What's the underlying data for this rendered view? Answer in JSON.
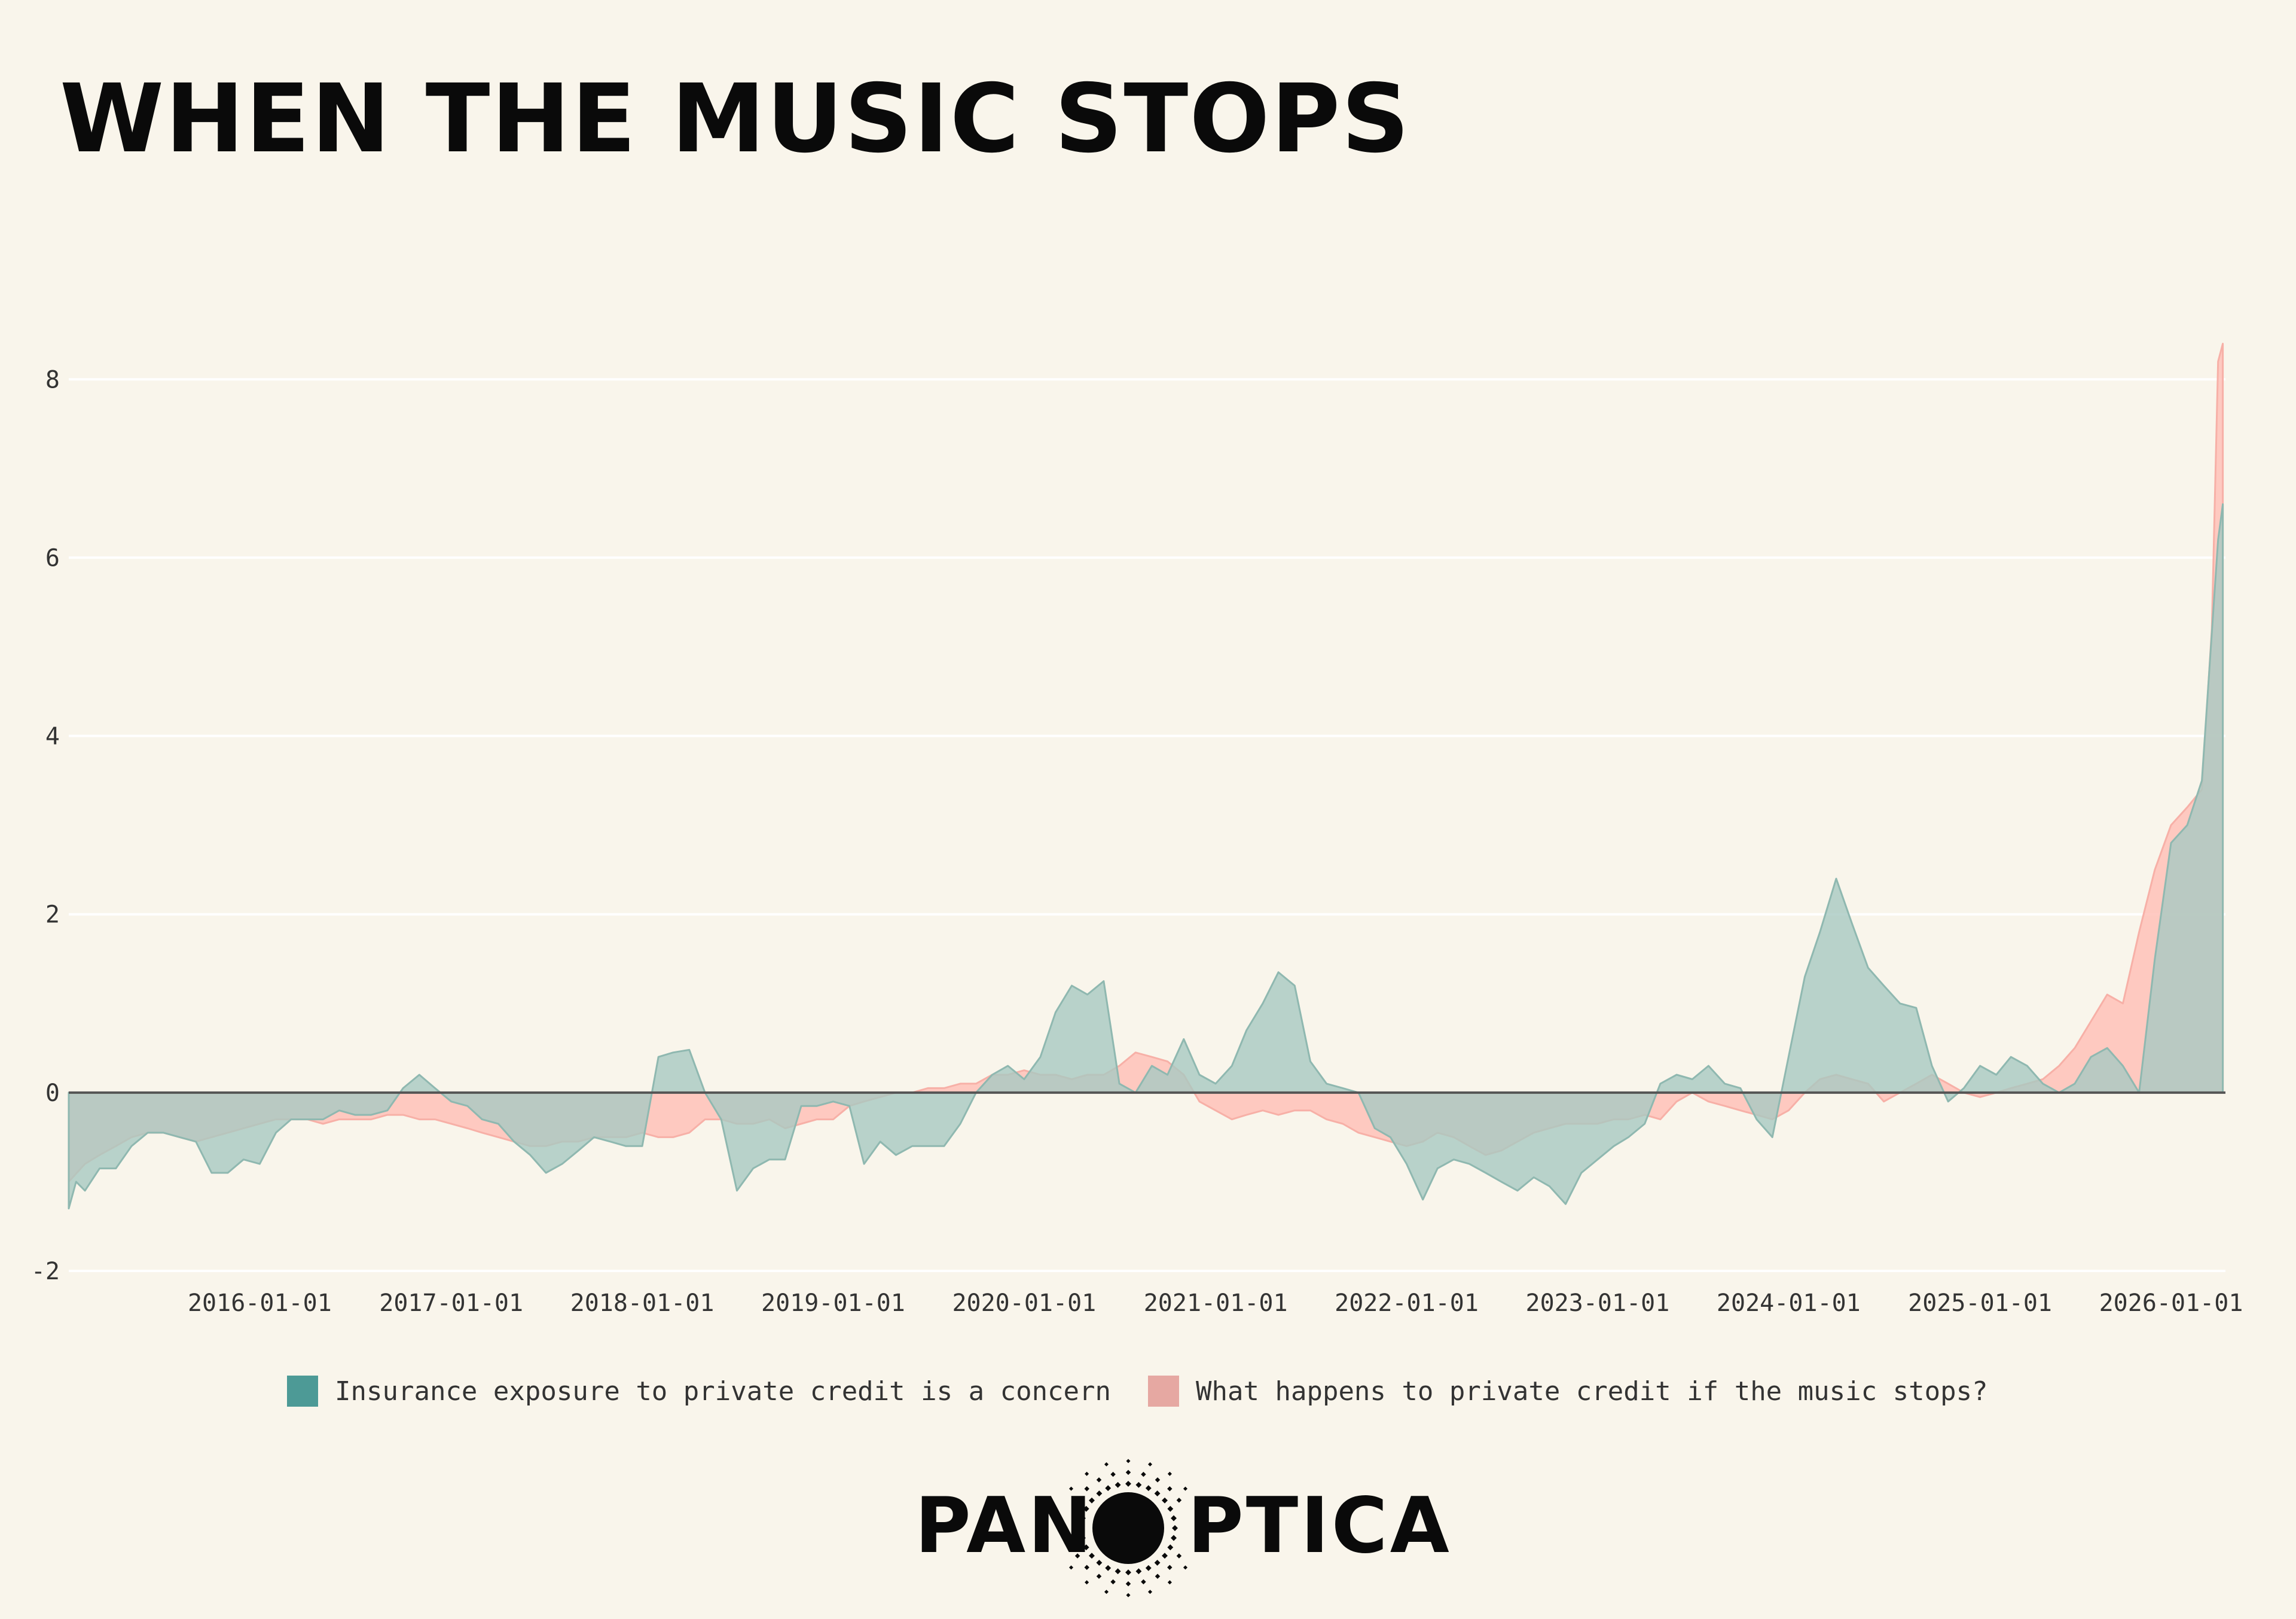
{
  "title": "WHEN THE MUSIC STOPS",
  "logo": {
    "part1": "PAN",
    "part2": "PTICA",
    "icon": "eye-sun-logo-icon"
  },
  "colors": {
    "background": "#f9f5eb",
    "series1": "#4d9a96",
    "series2": "#e6a8a2",
    "series1_fill": "#a8c9c2",
    "series2_fill": "#ffc1b8"
  },
  "chart_data": {
    "type": "area",
    "xlabel": "",
    "ylabel": "",
    "ylim": [
      -2,
      8.8
    ],
    "yticks": [
      -2,
      0,
      2,
      4,
      6,
      8
    ],
    "xlim": [
      "2015-01-01",
      "2026-04-15"
    ],
    "xticks": [
      "2016-01-01",
      "2017-01-01",
      "2018-01-01",
      "2019-01-01",
      "2020-01-01",
      "2021-01-01",
      "2022-01-01",
      "2023-01-01",
      "2024-01-01",
      "2025-01-01",
      "2026-01-01"
    ],
    "grid": true,
    "legend_position": "bottom",
    "series": [
      {
        "name": "Insurance exposure to private credit is a concern",
        "points": [
          [
            "2015-01-01",
            -1.3
          ],
          [
            "2015-01-15",
            -1.0
          ],
          [
            "2015-02-01",
            -1.1
          ],
          [
            "2015-03-01",
            -0.85
          ],
          [
            "2015-04-01",
            -0.85
          ],
          [
            "2015-05-01",
            -0.6
          ],
          [
            "2015-06-01",
            -0.45
          ],
          [
            "2015-07-01",
            -0.45
          ],
          [
            "2015-08-01",
            -0.5
          ],
          [
            "2015-09-01",
            -0.55
          ],
          [
            "2015-10-01",
            -0.9
          ],
          [
            "2015-11-01",
            -0.9
          ],
          [
            "2015-12-01",
            -0.75
          ],
          [
            "2016-01-01",
            -0.8
          ],
          [
            "2016-02-01",
            -0.45
          ],
          [
            "2016-03-01",
            -0.3
          ],
          [
            "2016-04-01",
            -0.3
          ],
          [
            "2016-05-01",
            -0.3
          ],
          [
            "2016-06-01",
            -0.2
          ],
          [
            "2016-07-01",
            -0.25
          ],
          [
            "2016-08-01",
            -0.25
          ],
          [
            "2016-09-01",
            -0.2
          ],
          [
            "2016-10-01",
            0.05
          ],
          [
            "2016-11-01",
            0.2
          ],
          [
            "2016-12-01",
            0.05
          ],
          [
            "2017-01-01",
            -0.1
          ],
          [
            "2017-02-01",
            -0.15
          ],
          [
            "2017-03-01",
            -0.3
          ],
          [
            "2017-04-01",
            -0.35
          ],
          [
            "2017-05-01",
            -0.55
          ],
          [
            "2017-06-01",
            -0.7
          ],
          [
            "2017-07-01",
            -0.9
          ],
          [
            "2017-08-01",
            -0.8
          ],
          [
            "2017-09-01",
            -0.65
          ],
          [
            "2017-10-01",
            -0.5
          ],
          [
            "2017-11-01",
            -0.55
          ],
          [
            "2017-12-01",
            -0.6
          ],
          [
            "2018-01-01",
            -0.6
          ],
          [
            "2018-02-01",
            0.4
          ],
          [
            "2018-03-01",
            0.45
          ],
          [
            "2018-04-01",
            0.48
          ],
          [
            "2018-05-01",
            0.0
          ],
          [
            "2018-06-01",
            -0.3
          ],
          [
            "2018-07-01",
            -1.1
          ],
          [
            "2018-08-01",
            -0.85
          ],
          [
            "2018-09-01",
            -0.75
          ],
          [
            "2018-10-01",
            -0.75
          ],
          [
            "2018-11-01",
            -0.15
          ],
          [
            "2018-12-01",
            -0.15
          ],
          [
            "2019-01-01",
            -0.1
          ],
          [
            "2019-02-01",
            -0.15
          ],
          [
            "2019-03-01",
            -0.8
          ],
          [
            "2019-04-01",
            -0.55
          ],
          [
            "2019-05-01",
            -0.7
          ],
          [
            "2019-06-01",
            -0.6
          ],
          [
            "2019-07-01",
            -0.6
          ],
          [
            "2019-08-01",
            -0.6
          ],
          [
            "2019-09-01",
            -0.35
          ],
          [
            "2019-10-01",
            0.0
          ],
          [
            "2019-11-01",
            0.2
          ],
          [
            "2019-12-01",
            0.3
          ],
          [
            "2020-01-01",
            0.15
          ],
          [
            "2020-02-01",
            0.4
          ],
          [
            "2020-03-01",
            0.9
          ],
          [
            "2020-04-01",
            1.2
          ],
          [
            "2020-05-01",
            1.1
          ],
          [
            "2020-06-01",
            1.25
          ],
          [
            "2020-07-01",
            0.1
          ],
          [
            "2020-08-01",
            0.0
          ],
          [
            "2020-09-01",
            0.3
          ],
          [
            "2020-10-01",
            0.2
          ],
          [
            "2020-11-01",
            0.6
          ],
          [
            "2020-12-01",
            0.2
          ],
          [
            "2021-01-01",
            0.1
          ],
          [
            "2021-02-01",
            0.3
          ],
          [
            "2021-03-01",
            0.7
          ],
          [
            "2021-04-01",
            1.0
          ],
          [
            "2021-05-01",
            1.35
          ],
          [
            "2021-06-01",
            1.2
          ],
          [
            "2021-07-01",
            0.35
          ],
          [
            "2021-08-01",
            0.1
          ],
          [
            "2021-09-01",
            0.05
          ],
          [
            "2021-10-01",
            0.0
          ],
          [
            "2021-11-01",
            -0.4
          ],
          [
            "2021-12-01",
            -0.5
          ],
          [
            "2022-01-01",
            -0.8
          ],
          [
            "2022-02-01",
            -1.2
          ],
          [
            "2022-03-01",
            -0.85
          ],
          [
            "2022-04-01",
            -0.75
          ],
          [
            "2022-05-01",
            -0.8
          ],
          [
            "2022-06-01",
            -0.9
          ],
          [
            "2022-07-01",
            -1.0
          ],
          [
            "2022-08-01",
            -1.1
          ],
          [
            "2022-09-01",
            -0.95
          ],
          [
            "2022-10-01",
            -1.05
          ],
          [
            "2022-11-01",
            -1.25
          ],
          [
            "2022-12-01",
            -0.9
          ],
          [
            "2023-01-01",
            -0.75
          ],
          [
            "2023-02-01",
            -0.6
          ],
          [
            "2023-03-01",
            -0.5
          ],
          [
            "2023-04-01",
            -0.35
          ],
          [
            "2023-05-01",
            0.1
          ],
          [
            "2023-06-01",
            0.2
          ],
          [
            "2023-07-01",
            0.15
          ],
          [
            "2023-08-01",
            0.3
          ],
          [
            "2023-09-01",
            0.1
          ],
          [
            "2023-10-01",
            0.05
          ],
          [
            "2023-11-01",
            -0.3
          ],
          [
            "2023-12-01",
            -0.5
          ],
          [
            "2024-01-01",
            0.4
          ],
          [
            "2024-02-01",
            1.3
          ],
          [
            "2024-03-01",
            1.8
          ],
          [
            "2024-04-01",
            2.4
          ],
          [
            "2024-05-01",
            1.9
          ],
          [
            "2024-06-01",
            1.4
          ],
          [
            "2024-07-01",
            1.2
          ],
          [
            "2024-08-01",
            1.0
          ],
          [
            "2024-09-01",
            0.95
          ],
          [
            "2024-10-01",
            0.3
          ],
          [
            "2024-11-01",
            -0.1
          ],
          [
            "2024-12-01",
            0.05
          ],
          [
            "2025-01-01",
            0.3
          ],
          [
            "2025-02-01",
            0.2
          ],
          [
            "2025-03-01",
            0.4
          ],
          [
            "2025-04-01",
            0.3
          ],
          [
            "2025-05-01",
            0.1
          ],
          [
            "2025-06-01",
            0.0
          ],
          [
            "2025-07-01",
            0.1
          ],
          [
            "2025-08-01",
            0.4
          ],
          [
            "2025-09-01",
            0.5
          ],
          [
            "2025-10-01",
            0.3
          ],
          [
            "2025-11-01",
            0.0
          ],
          [
            "2025-12-01",
            1.5
          ],
          [
            "2026-01-01",
            2.8
          ],
          [
            "2026-02-01",
            3.0
          ],
          [
            "2026-03-01",
            3.5
          ],
          [
            "2026-04-01",
            6.2
          ],
          [
            "2026-04-10",
            6.6
          ]
        ]
      },
      {
        "name": "What happens to private credit if the music stops?",
        "points": [
          [
            "2015-01-01",
            -1.0
          ],
          [
            "2015-02-01",
            -0.8
          ],
          [
            "2015-03-01",
            -0.7
          ],
          [
            "2015-04-01",
            -0.6
          ],
          [
            "2015-05-01",
            -0.5
          ],
          [
            "2015-06-01",
            -0.45
          ],
          [
            "2015-07-01",
            -0.45
          ],
          [
            "2015-08-01",
            -0.5
          ],
          [
            "2015-09-01",
            -0.55
          ],
          [
            "2015-10-01",
            -0.5
          ],
          [
            "2015-11-01",
            -0.45
          ],
          [
            "2015-12-01",
            -0.4
          ],
          [
            "2016-01-01",
            -0.35
          ],
          [
            "2016-02-01",
            -0.3
          ],
          [
            "2016-03-01",
            -0.3
          ],
          [
            "2016-04-01",
            -0.3
          ],
          [
            "2016-05-01",
            -0.35
          ],
          [
            "2016-06-01",
            -0.3
          ],
          [
            "2016-07-01",
            -0.3
          ],
          [
            "2016-08-01",
            -0.3
          ],
          [
            "2016-09-01",
            -0.25
          ],
          [
            "2016-10-01",
            -0.25
          ],
          [
            "2016-11-01",
            -0.3
          ],
          [
            "2016-12-01",
            -0.3
          ],
          [
            "2017-01-01",
            -0.35
          ],
          [
            "2017-02-01",
            -0.4
          ],
          [
            "2017-03-01",
            -0.45
          ],
          [
            "2017-04-01",
            -0.5
          ],
          [
            "2017-05-01",
            -0.55
          ],
          [
            "2017-06-01",
            -0.6
          ],
          [
            "2017-07-01",
            -0.6
          ],
          [
            "2017-08-01",
            -0.55
          ],
          [
            "2017-09-01",
            -0.55
          ],
          [
            "2017-10-01",
            -0.5
          ],
          [
            "2017-11-01",
            -0.5
          ],
          [
            "2017-12-01",
            -0.5
          ],
          [
            "2018-01-01",
            -0.45
          ],
          [
            "2018-02-01",
            -0.5
          ],
          [
            "2018-03-01",
            -0.5
          ],
          [
            "2018-04-01",
            -0.45
          ],
          [
            "2018-05-01",
            -0.3
          ],
          [
            "2018-06-01",
            -0.3
          ],
          [
            "2018-07-01",
            -0.35
          ],
          [
            "2018-08-01",
            -0.35
          ],
          [
            "2018-09-01",
            -0.3
          ],
          [
            "2018-10-01",
            -0.4
          ],
          [
            "2018-11-01",
            -0.35
          ],
          [
            "2018-12-01",
            -0.3
          ],
          [
            "2019-01-01",
            -0.3
          ],
          [
            "2019-02-01",
            -0.15
          ],
          [
            "2019-03-01",
            -0.1
          ],
          [
            "2019-04-01",
            -0.05
          ],
          [
            "2019-05-01",
            0.0
          ],
          [
            "2019-06-01",
            0.0
          ],
          [
            "2019-07-01",
            0.05
          ],
          [
            "2019-08-01",
            0.05
          ],
          [
            "2019-09-01",
            0.1
          ],
          [
            "2019-10-01",
            0.1
          ],
          [
            "2019-11-01",
            0.2
          ],
          [
            "2019-12-01",
            0.2
          ],
          [
            "2020-01-01",
            0.25
          ],
          [
            "2020-02-01",
            0.2
          ],
          [
            "2020-03-01",
            0.2
          ],
          [
            "2020-04-01",
            0.15
          ],
          [
            "2020-05-01",
            0.2
          ],
          [
            "2020-06-01",
            0.2
          ],
          [
            "2020-07-01",
            0.3
          ],
          [
            "2020-08-01",
            0.45
          ],
          [
            "2020-09-01",
            0.4
          ],
          [
            "2020-10-01",
            0.35
          ],
          [
            "2020-11-01",
            0.2
          ],
          [
            "2020-12-01",
            -0.1
          ],
          [
            "2021-01-01",
            -0.2
          ],
          [
            "2021-02-01",
            -0.3
          ],
          [
            "2021-03-01",
            -0.25
          ],
          [
            "2021-04-01",
            -0.2
          ],
          [
            "2021-05-01",
            -0.25
          ],
          [
            "2021-06-01",
            -0.2
          ],
          [
            "2021-07-01",
            -0.2
          ],
          [
            "2021-08-01",
            -0.3
          ],
          [
            "2021-09-01",
            -0.35
          ],
          [
            "2021-10-01",
            -0.45
          ],
          [
            "2021-11-01",
            -0.5
          ],
          [
            "2021-12-01",
            -0.55
          ],
          [
            "2022-01-01",
            -0.6
          ],
          [
            "2022-02-01",
            -0.55
          ],
          [
            "2022-03-01",
            -0.45
          ],
          [
            "2022-04-01",
            -0.5
          ],
          [
            "2022-05-01",
            -0.6
          ],
          [
            "2022-06-01",
            -0.7
          ],
          [
            "2022-07-01",
            -0.65
          ],
          [
            "2022-08-01",
            -0.55
          ],
          [
            "2022-09-01",
            -0.45
          ],
          [
            "2022-10-01",
            -0.4
          ],
          [
            "2022-11-01",
            -0.35
          ],
          [
            "2022-12-01",
            -0.35
          ],
          [
            "2023-01-01",
            -0.35
          ],
          [
            "2023-02-01",
            -0.3
          ],
          [
            "2023-03-01",
            -0.3
          ],
          [
            "2023-04-01",
            -0.25
          ],
          [
            "2023-05-01",
            -0.3
          ],
          [
            "2023-06-01",
            -0.1
          ],
          [
            "2023-07-01",
            0.0
          ],
          [
            "2023-08-01",
            -0.1
          ],
          [
            "2023-09-01",
            -0.15
          ],
          [
            "2023-10-01",
            -0.2
          ],
          [
            "2023-11-01",
            -0.25
          ],
          [
            "2023-12-01",
            -0.3
          ],
          [
            "2024-01-01",
            -0.2
          ],
          [
            "2024-02-01",
            0.0
          ],
          [
            "2024-03-01",
            0.15
          ],
          [
            "2024-04-01",
            0.2
          ],
          [
            "2024-05-01",
            0.15
          ],
          [
            "2024-06-01",
            0.1
          ],
          [
            "2024-07-01",
            -0.1
          ],
          [
            "2024-08-01",
            0.0
          ],
          [
            "2024-09-01",
            0.1
          ],
          [
            "2024-10-01",
            0.2
          ],
          [
            "2024-11-01",
            0.1
          ],
          [
            "2024-12-01",
            0.0
          ],
          [
            "2025-01-01",
            -0.05
          ],
          [
            "2025-02-01",
            0.0
          ],
          [
            "2025-03-01",
            0.05
          ],
          [
            "2025-04-01",
            0.1
          ],
          [
            "2025-05-01",
            0.15
          ],
          [
            "2025-06-01",
            0.3
          ],
          [
            "2025-07-01",
            0.5
          ],
          [
            "2025-08-01",
            0.8
          ],
          [
            "2025-09-01",
            1.1
          ],
          [
            "2025-10-01",
            1.0
          ],
          [
            "2025-11-01",
            1.8
          ],
          [
            "2025-12-01",
            2.5
          ],
          [
            "2026-01-01",
            3.0
          ],
          [
            "2026-02-01",
            3.2
          ],
          [
            "2026-03-01",
            3.4
          ],
          [
            "2026-03-20",
            5.2
          ],
          [
            "2026-04-01",
            8.2
          ],
          [
            "2026-04-10",
            8.4
          ]
        ]
      }
    ]
  }
}
